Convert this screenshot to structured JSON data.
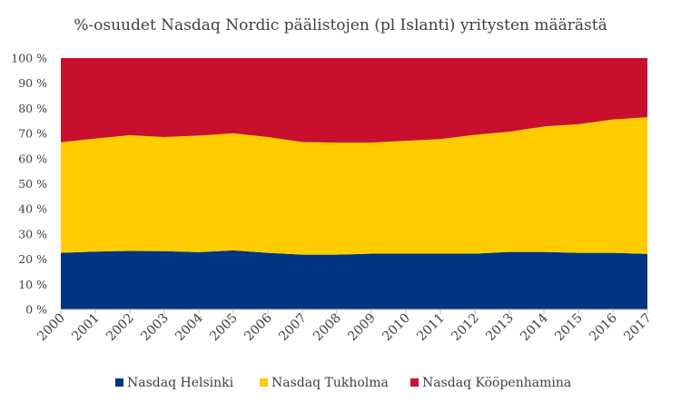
{
  "chart_data": {
    "type": "area",
    "stacked": true,
    "percent": true,
    "title": "%-osuudet Nasdaq Nordic päälistojen (pl Islanti) yritysten määrästä",
    "x": [
      "2000",
      "2001",
      "2002",
      "2003",
      "2004",
      "2005",
      "2006",
      "2007",
      "2008",
      "2009",
      "2010",
      "2011",
      "2012",
      "2013",
      "2014",
      "2015",
      "2016",
      "2017"
    ],
    "ylim": [
      0,
      100
    ],
    "yticks": [
      "0 %",
      "10 %",
      "20 %",
      "30 %",
      "40 %",
      "50 %",
      "60 %",
      "70 %",
      "80 %",
      "90 %",
      "100 %"
    ],
    "series": [
      {
        "name": "Nasdaq Helsinki",
        "color": "#003580",
        "values": [
          22.5,
          23.0,
          23.3,
          23.2,
          22.8,
          23.5,
          22.5,
          21.8,
          21.8,
          22.2,
          22.2,
          22.2,
          22.2,
          22.9,
          22.9,
          22.5,
          22.5,
          22.1
        ]
      },
      {
        "name": "Nasdaq Tukholma",
        "color": "#FFCC00",
        "values": [
          44.0,
          45.0,
          46.0,
          45.4,
          46.4,
          46.6,
          46.1,
          44.8,
          44.6,
          44.2,
          44.9,
          45.6,
          47.3,
          47.8,
          49.9,
          51.2,
          53.1,
          54.4
        ]
      },
      {
        "name": "Nasdaq Kööpenhamina",
        "color": "#C8102E",
        "values": [
          33.5,
          32.0,
          30.7,
          31.4,
          30.8,
          29.9,
          31.4,
          33.4,
          33.6,
          33.6,
          32.9,
          32.2,
          30.5,
          29.3,
          27.2,
          26.3,
          24.4,
          23.5
        ]
      }
    ],
    "legend_position": "bottom",
    "grid": false
  }
}
